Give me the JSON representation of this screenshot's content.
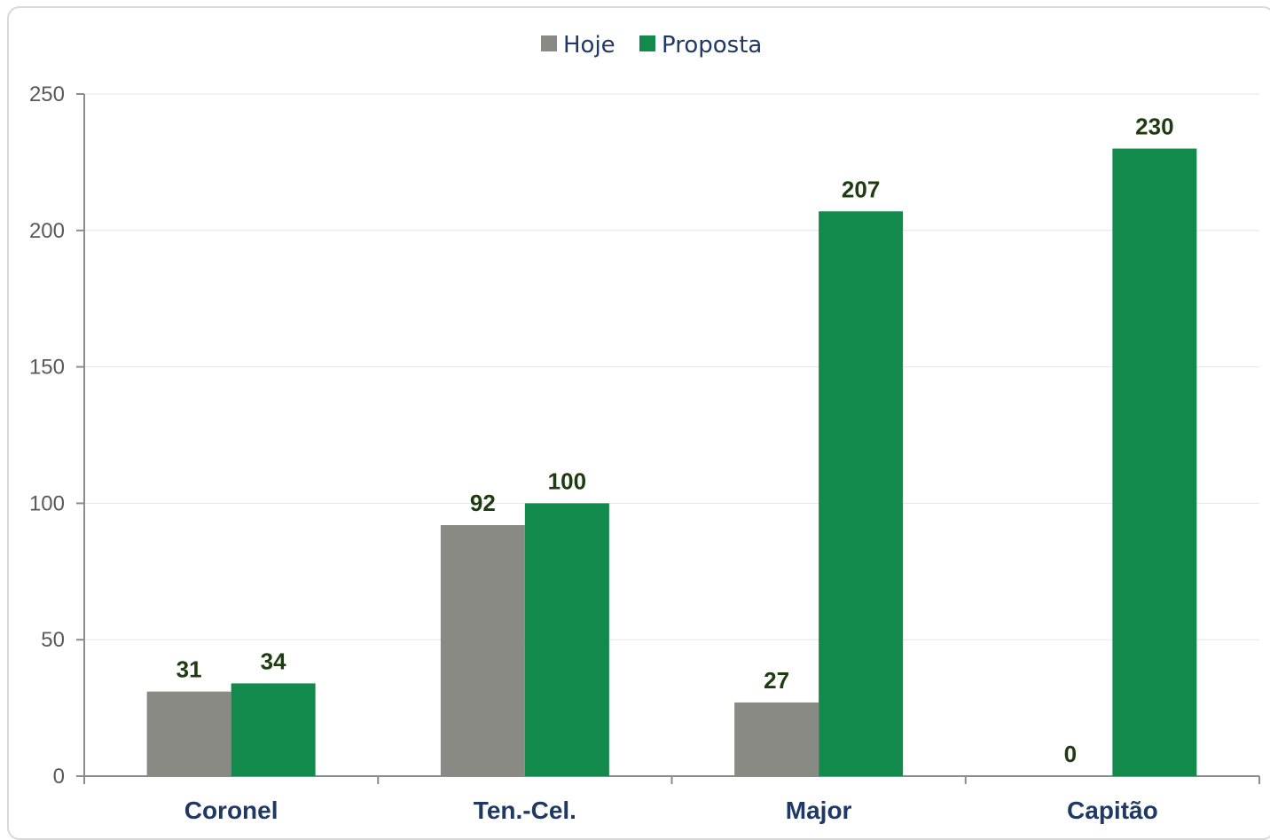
{
  "chart_data": {
    "type": "bar",
    "categories": [
      "Coronel",
      "Ten.-Cel.",
      "Major",
      "Capitão"
    ],
    "series": [
      {
        "name": "Hoje",
        "values": [
          31,
          92,
          27,
          0
        ],
        "color": "#8a8a84"
      },
      {
        "name": "Proposta",
        "values": [
          34,
          100,
          207,
          230
        ],
        "color": "#118a4b"
      }
    ],
    "yticks": [
      0,
      50,
      100,
      150,
      200,
      250
    ],
    "ylim": [
      0,
      250
    ],
    "grid": true,
    "legend_position": "top-center",
    "title": "",
    "xlabel": "",
    "ylabel": ""
  }
}
